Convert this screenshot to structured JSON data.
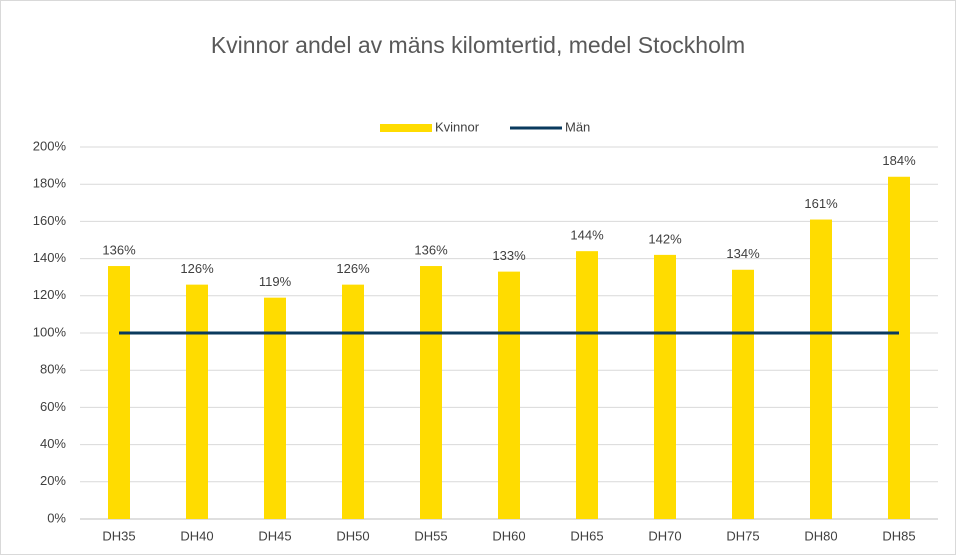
{
  "chart_data": {
    "type": "bar",
    "title": "Kvinnor andel av mäns kilomtertid, medel Stockholm",
    "categories": [
      "DH35",
      "DH40",
      "DH45",
      "DH50",
      "DH55",
      "DH60",
      "DH65",
      "DH70",
      "DH75",
      "DH80",
      "DH85"
    ],
    "series": [
      {
        "name": "Kvinnor",
        "type": "bar",
        "color": "#ffdc00",
        "values": [
          136,
          126,
          119,
          126,
          136,
          133,
          144,
          142,
          134,
          161,
          184
        ],
        "value_labels": [
          "136%",
          "126%",
          "119%",
          "126%",
          "136%",
          "133%",
          "144%",
          "142%",
          "134%",
          "161%",
          "184%"
        ]
      },
      {
        "name": "Män",
        "type": "line",
        "color": "#0a3a5e",
        "values": [
          100,
          100,
          100,
          100,
          100,
          100,
          100,
          100,
          100,
          100,
          100
        ]
      }
    ],
    "ylim": [
      0,
      200
    ],
    "yticks": [
      {
        "value": 0,
        "label": "0%"
      },
      {
        "value": 20,
        "label": "20%"
      },
      {
        "value": 40,
        "label": "40%"
      },
      {
        "value": 60,
        "label": "60%"
      },
      {
        "value": 80,
        "label": "80%"
      },
      {
        "value": 100,
        "label": "100%"
      },
      {
        "value": 120,
        "label": "120%"
      },
      {
        "value": 140,
        "label": "140%"
      },
      {
        "value": 160,
        "label": "160%"
      },
      {
        "value": 180,
        "label": "180%"
      },
      {
        "value": 200,
        "label": "200%"
      }
    ],
    "grid": true,
    "legend": "top"
  }
}
